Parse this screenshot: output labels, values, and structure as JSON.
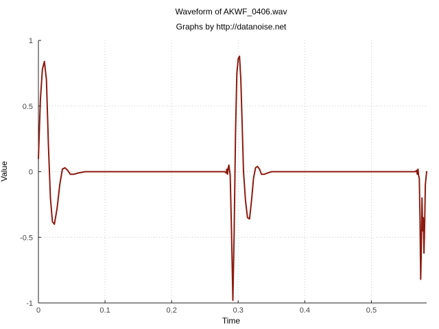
{
  "chart_data": {
    "type": "line",
    "title": "Waveform of AKWF_0406.wav",
    "subtitle": "Graphs by http://datanoise.net",
    "xlabel": "Time",
    "ylabel": "Value",
    "xlim": [
      0,
      0.583
    ],
    "ylim": [
      -1,
      1
    ],
    "x_ticks": [
      0,
      0.1,
      0.2,
      0.3,
      0.4,
      0.5
    ],
    "x_tick_labels": [
      "0",
      "0.1",
      "0.2",
      "0.3",
      "0.4",
      "0.5"
    ],
    "y_ticks": [
      -1,
      -0.5,
      0,
      0.5,
      1
    ],
    "y_tick_labels": [
      "-1",
      "-0.5",
      "0",
      "0.5",
      "1"
    ],
    "grid": true,
    "line_color": "#8b1a10",
    "series": [
      {
        "x": [
          0,
          0.003,
          0.006,
          0.009,
          0.012,
          0.015,
          0.018,
          0.021,
          0.024,
          0.028,
          0.032,
          0.036,
          0.04,
          0.044,
          0.048,
          0.053,
          0.06,
          0.07,
          0.1,
          0.2,
          0.28,
          0.282,
          0.283,
          0.284,
          0.285,
          0.286,
          0.288,
          0.29,
          0.292,
          0.294,
          0.296,
          0.298,
          0.3,
          0.302,
          0.304,
          0.306,
          0.308,
          0.311,
          0.314,
          0.317,
          0.32,
          0.323,
          0.326,
          0.329,
          0.332,
          0.335,
          0.339,
          0.344,
          0.35,
          0.36,
          0.4,
          0.5,
          0.566,
          0.568,
          0.569,
          0.57,
          0.571,
          0.572,
          0.573,
          0.574,
          0.575,
          0.576,
          0.577,
          0.578,
          0.579,
          0.58,
          0.581,
          0.582,
          0.583
        ],
        "y": [
          0.1,
          0.55,
          0.78,
          0.84,
          0.7,
          0.2,
          -0.2,
          -0.38,
          -0.4,
          -0.28,
          -0.1,
          0.02,
          0.03,
          0.01,
          -0.02,
          -0.02,
          -0.01,
          0,
          0,
          0,
          0,
          -0.01,
          0.02,
          -0.02,
          0.03,
          0.05,
          -0.03,
          -0.45,
          -0.98,
          -0.45,
          0.3,
          0.75,
          0.86,
          0.88,
          0.7,
          0.35,
          0,
          -0.22,
          -0.35,
          -0.36,
          -0.22,
          -0.05,
          0.03,
          0.04,
          0.02,
          -0.02,
          -0.02,
          -0.01,
          0,
          0,
          0,
          0,
          0,
          0.01,
          -0.02,
          0.02,
          -0.03,
          -0.05,
          -0.35,
          -0.82,
          -0.6,
          -0.2,
          -0.45,
          -0.35,
          -0.62,
          -0.4,
          -0.1,
          -0.05,
          0
        ]
      }
    ]
  }
}
